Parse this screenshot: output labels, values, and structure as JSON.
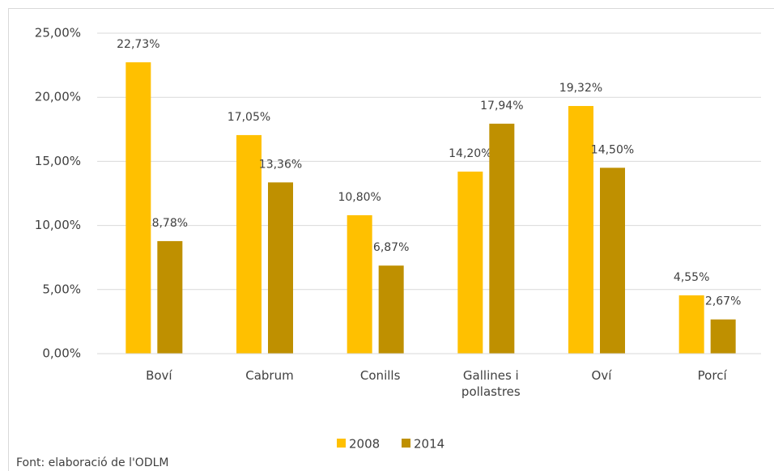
{
  "chart_data": {
    "type": "bar",
    "categories": [
      "Boví",
      "Cabrum",
      "Conills",
      "Gallines i pollastres",
      "Oví",
      "Porcí"
    ],
    "series": [
      {
        "name": "2008",
        "color": "#ffc000",
        "values": [
          22.73,
          17.05,
          10.8,
          14.2,
          19.32,
          4.55
        ],
        "value_labels": [
          "22,73%",
          "17,05%",
          "10,80%",
          "14,20%",
          "19,32%",
          "4,55%"
        ]
      },
      {
        "name": "2014",
        "color": "#bf9000",
        "values": [
          8.78,
          13.36,
          6.87,
          17.94,
          14.5,
          2.67
        ],
        "value_labels": [
          "8,78%",
          "13,36%",
          "6,87%",
          "17,94%",
          "14,50%",
          "2,67%"
        ]
      }
    ],
    "ylim": [
      0,
      25
    ],
    "yticks": [
      {
        "value": 0,
        "label": "0,00%"
      },
      {
        "value": 5,
        "label": "5,00%"
      },
      {
        "value": 10,
        "label": "10,00%"
      },
      {
        "value": 15,
        "label": "15,00%"
      },
      {
        "value": 20,
        "label": "20,00%"
      },
      {
        "value": 25,
        "label": "25,00%"
      }
    ],
    "grid": true,
    "legend": "bottom",
    "note": "Font: elaboració de l'ODLM"
  }
}
